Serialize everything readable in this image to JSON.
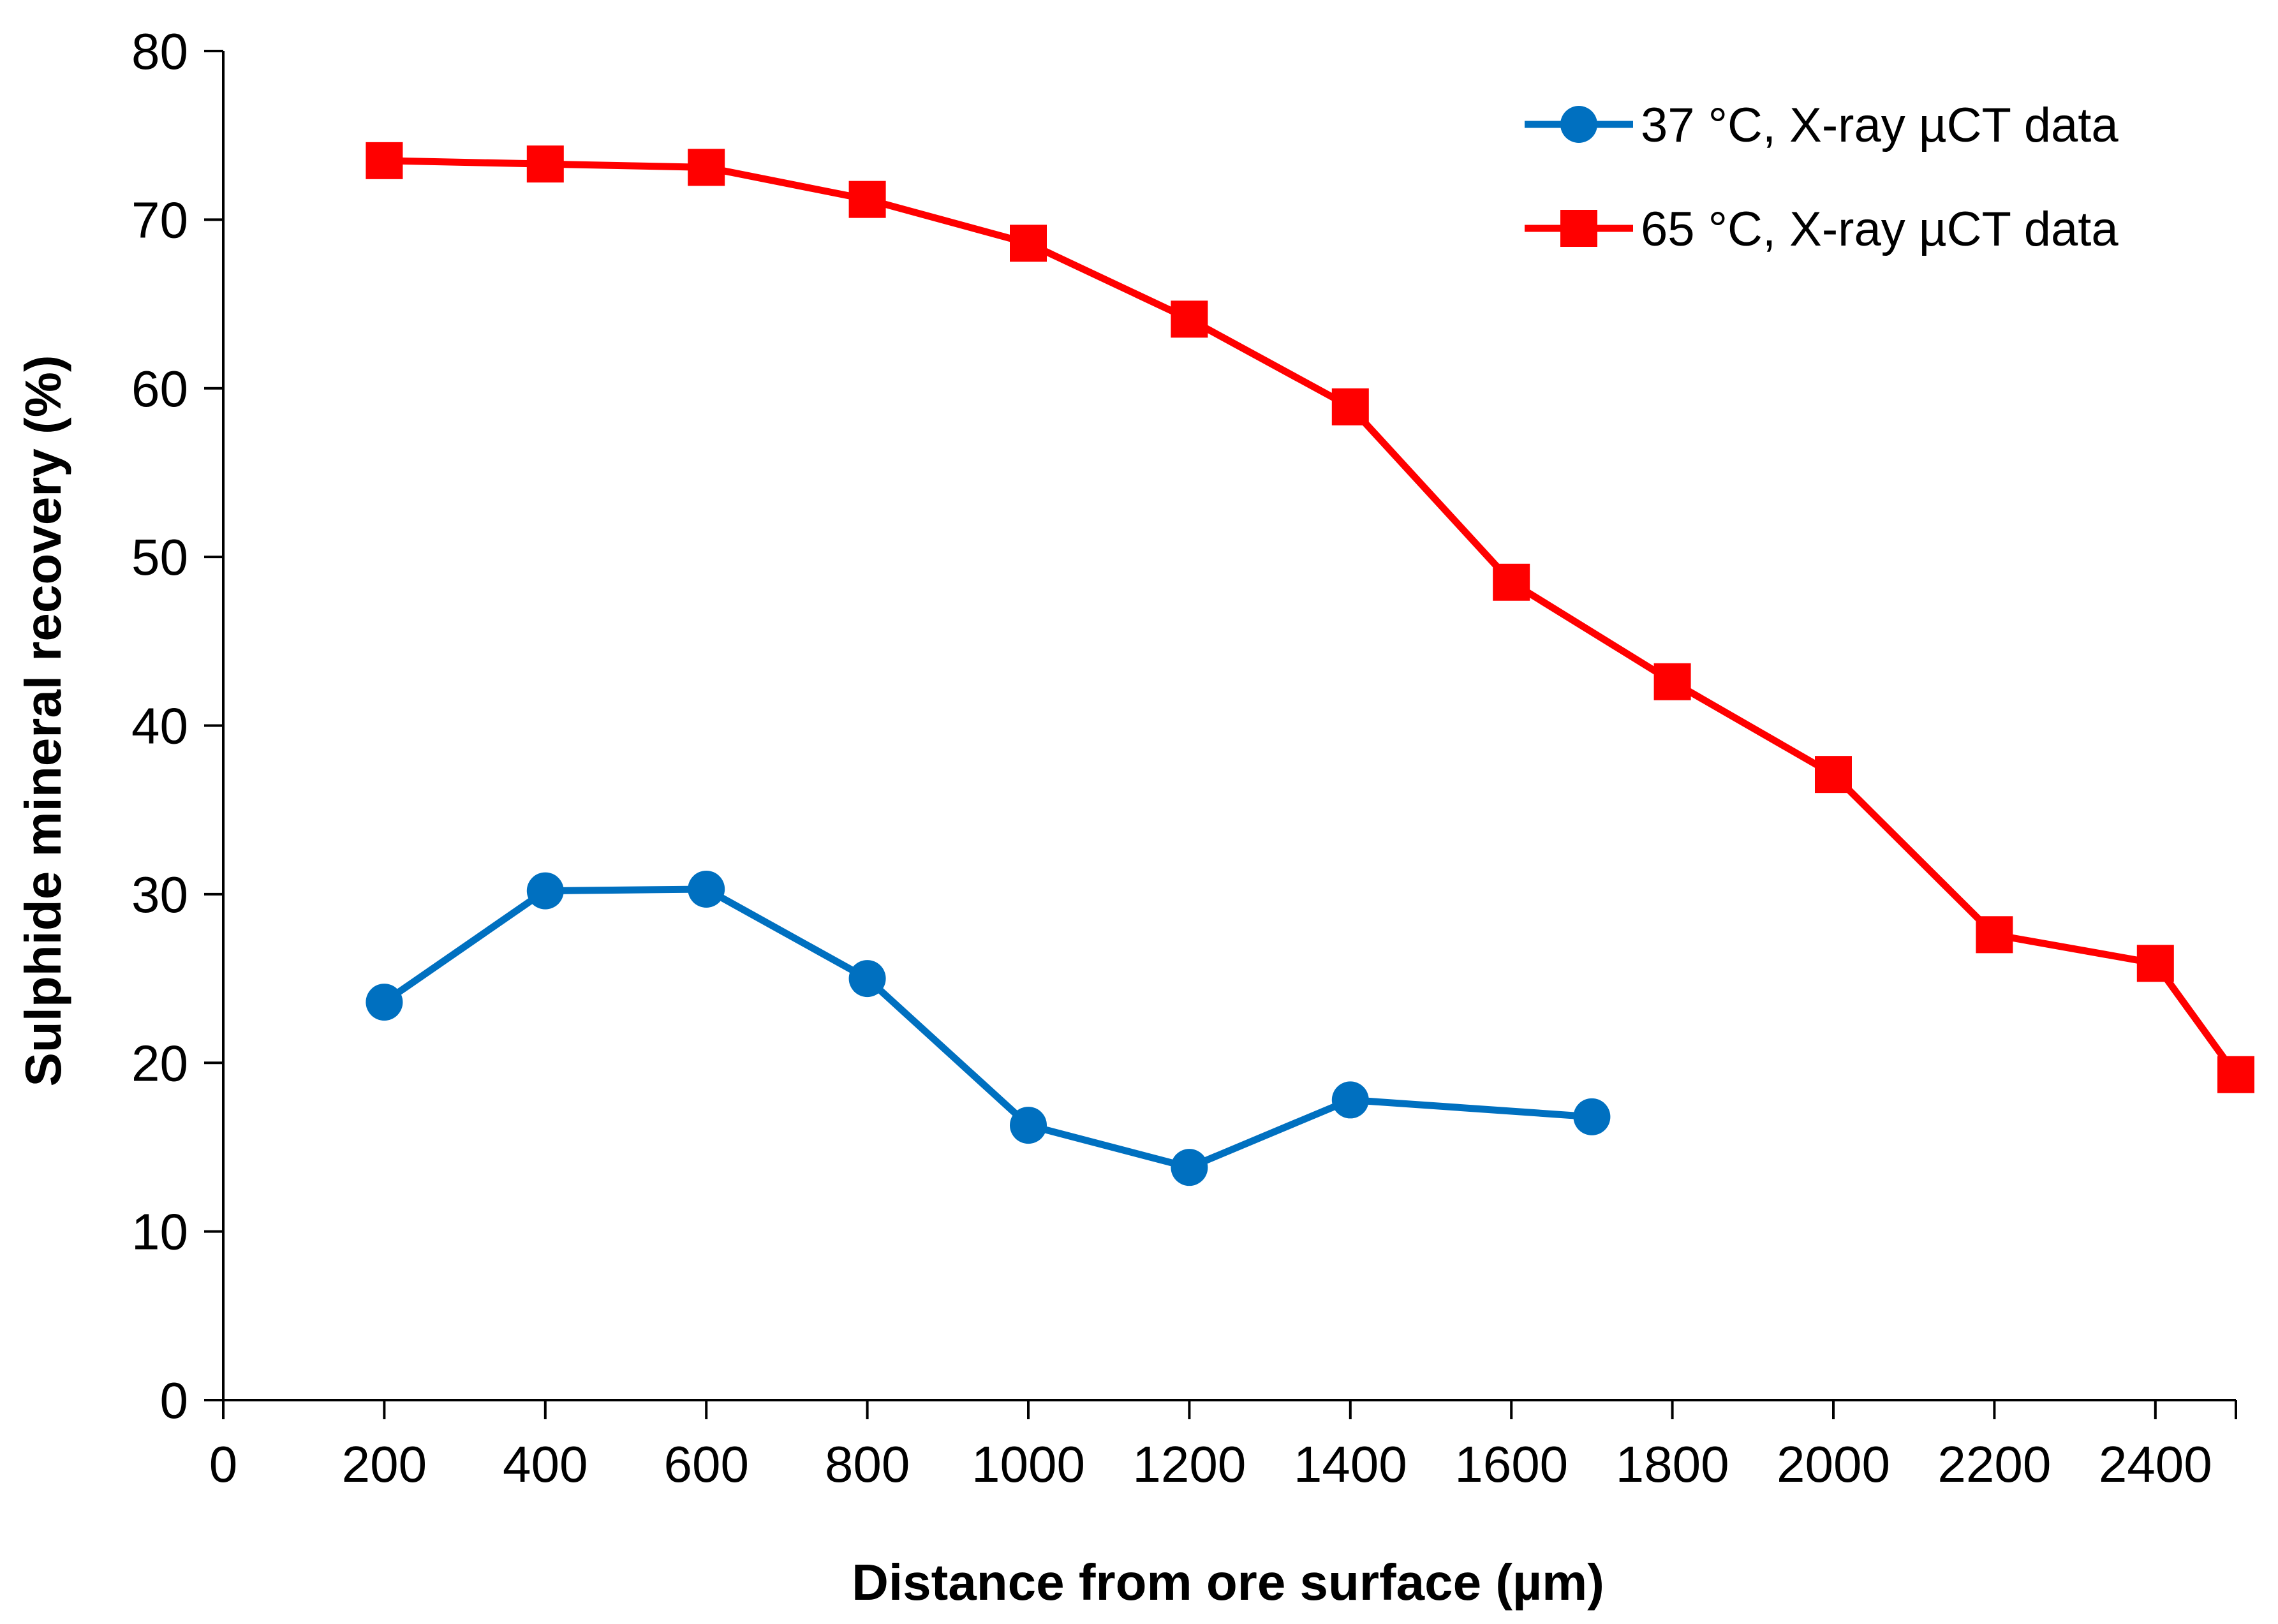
{
  "chart_data": {
    "type": "line",
    "title": "",
    "xlabel": "Distance from ore surface (µm)",
    "ylabel": "Sulphide mineral recovery (%)",
    "xlim": [
      0,
      2500
    ],
    "ylim": [
      0,
      80
    ],
    "xticks": [
      0,
      200,
      400,
      600,
      800,
      1000,
      1200,
      1400,
      1600,
      1800,
      2000,
      2200,
      2400
    ],
    "yticks": [
      0,
      10,
      20,
      30,
      40,
      50,
      60,
      70,
      80
    ],
    "grid": false,
    "legend_position": "top-right",
    "series": [
      {
        "name": "37 °C, X-ray µCT data",
        "color": "#0070C0",
        "marker": "circle",
        "x": [
          200,
          400,
          600,
          800,
          1000,
          1200,
          1400,
          1700
        ],
        "y": [
          23.6,
          30.2,
          30.3,
          25.0,
          16.3,
          13.8,
          17.8,
          16.8
        ]
      },
      {
        "name": "65 °C, X-ray µCT data",
        "color": "#FF0000",
        "marker": "square",
        "x": [
          200,
          400,
          600,
          800,
          1000,
          1200,
          1400,
          1600,
          1800,
          2000,
          2200,
          2400,
          2500
        ],
        "y": [
          73.5,
          73.3,
          73.1,
          71.2,
          68.6,
          64.1,
          58.9,
          48.5,
          42.6,
          37.1,
          27.6,
          25.9,
          19.3
        ]
      }
    ]
  }
}
